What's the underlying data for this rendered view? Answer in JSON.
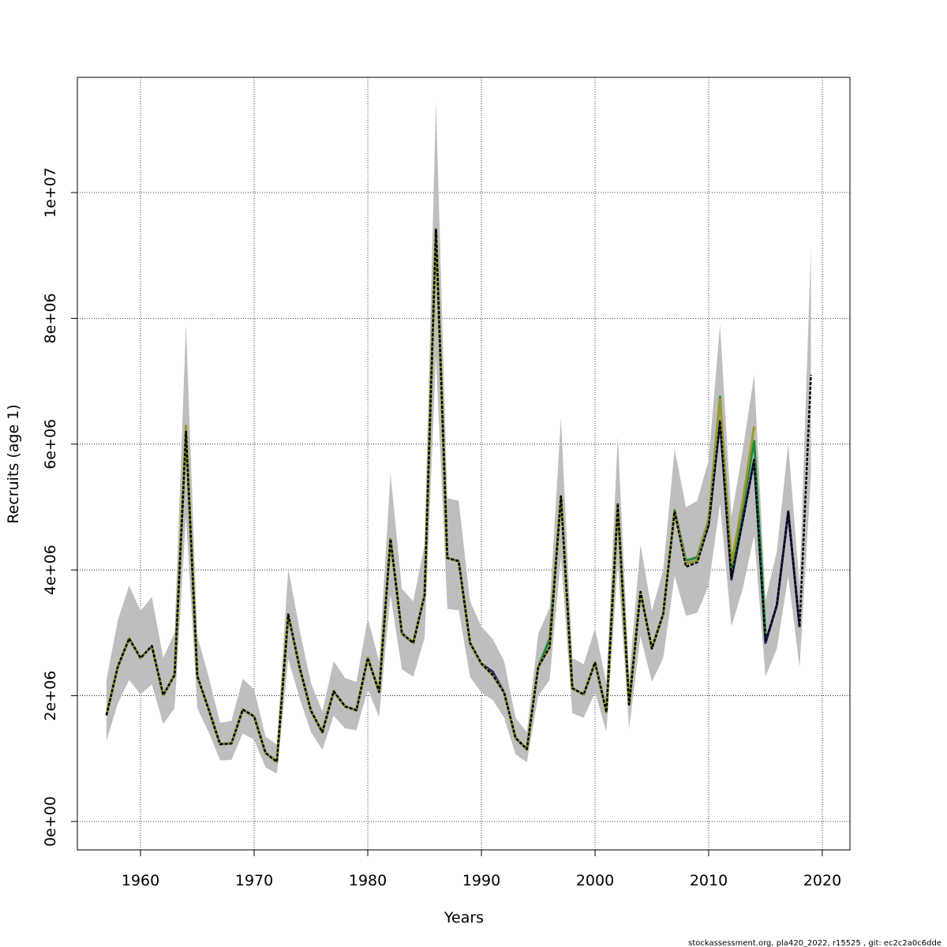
{
  "chart_data": {
    "type": "line",
    "xlabel": "Years",
    "ylabel": "Recruits (age 1)",
    "footer": "stockassessment.org, pla420_2022, r15525 , git: ec2c2a0c6dde",
    "x": [
      1957,
      1958,
      1959,
      1960,
      1961,
      1962,
      1963,
      1964,
      1965,
      1966,
      1967,
      1968,
      1969,
      1970,
      1971,
      1972,
      1973,
      1974,
      1975,
      1976,
      1977,
      1978,
      1979,
      1980,
      1981,
      1982,
      1983,
      1984,
      1985,
      1986,
      1987,
      1988,
      1989,
      1990,
      1991,
      1992,
      1993,
      1994,
      1995,
      1996,
      1997,
      1998,
      1999,
      2000,
      2001,
      2002,
      2003,
      2004,
      2005,
      2006,
      2007,
      2008,
      2009,
      2010,
      2011,
      2012,
      2013,
      2014,
      2015,
      2016,
      2017,
      2018,
      2019
    ],
    "band": {
      "color": "#bebebe",
      "upper": [
        2250000,
        3200000,
        3750000,
        3350000,
        3570000,
        2600000,
        3000000,
        7900000,
        2950000,
        2300000,
        1570000,
        1600000,
        2270000,
        2100000,
        1350000,
        1220000,
        4020000,
        3050000,
        2200000,
        1750000,
        2550000,
        2280000,
        2220000,
        3230000,
        2550000,
        5530000,
        3700000,
        3500000,
        4400000,
        11450000,
        5140000,
        5100000,
        3500000,
        3100000,
        2900000,
        2550000,
        1650000,
        1420000,
        2980000,
        3400000,
        6420000,
        2600000,
        2500000,
        3070000,
        2200000,
        6120000,
        2300000,
        4400000,
        3350000,
        4000000,
        5920000,
        5000000,
        5100000,
        5750000,
        7900000,
        4850000,
        5900000,
        7100000,
        3520000,
        4300000,
        6000000,
        3750000,
        9130000
      ],
      "lower": [
        1280000,
        1880000,
        2250000,
        2020000,
        2180000,
        1550000,
        1800000,
        4850000,
        1800000,
        1420000,
        970000,
        980000,
        1400000,
        1300000,
        860000,
        760000,
        2580000,
        1960000,
        1420000,
        1140000,
        1680000,
        1480000,
        1450000,
        2100000,
        1660000,
        3600000,
        2420000,
        2300000,
        2920000,
        7400000,
        3380000,
        3360000,
        2300000,
        2050000,
        1930000,
        1650000,
        1070000,
        940000,
        2000000,
        2250000,
        4200000,
        1720000,
        1650000,
        2050000,
        1420000,
        4100000,
        1480000,
        2950000,
        2220000,
        2600000,
        3900000,
        3270000,
        3320000,
        3750000,
        5050000,
        3100000,
        3700000,
        4550000,
        2300000,
        2750000,
        3900000,
        2450000,
        5500000
      ]
    },
    "series": [
      {
        "color": "#000000",
        "dashed": true,
        "values": [
          1690000,
          2460000,
          2910000,
          2600000,
          2790000,
          2010000,
          2330000,
          6200000,
          2310000,
          1780000,
          1230000,
          1240000,
          1780000,
          1670000,
          1090000,
          950000,
          3290000,
          2450000,
          1760000,
          1420000,
          2070000,
          1830000,
          1770000,
          2600000,
          2060000,
          4490000,
          2990000,
          2840000,
          3600000,
          9420000,
          4190000,
          4140000,
          2840000,
          2510000,
          2330000,
          2050000,
          1330000,
          1150000,
          2460000,
          2770000,
          5170000,
          2120000,
          2020000,
          2530000,
          1740000,
          5020000,
          1860000,
          3650000,
          2750000,
          3300000,
          4930000,
          4050000,
          4120000,
          4720000,
          6370000,
          3880000,
          4780000,
          5750000,
          2860000,
          3440000,
          4910000,
          3090000,
          7100000
        ]
      },
      {
        "color": "#24246e",
        "values": [
          1690000,
          2460000,
          2910000,
          2600000,
          2790000,
          2010000,
          2330000,
          6200000,
          2310000,
          1780000,
          1230000,
          1240000,
          1780000,
          1670000,
          1090000,
          950000,
          3290000,
          2450000,
          1760000,
          1420000,
          2070000,
          1830000,
          1770000,
          2600000,
          2060000,
          4490000,
          2990000,
          2840000,
          3600000,
          9420000,
          4190000,
          4140000,
          2840000,
          2510000,
          2380000,
          2050000,
          1330000,
          1150000,
          2460000,
          2770000,
          5170000,
          2120000,
          2020000,
          2530000,
          1740000,
          5040000,
          1860000,
          3650000,
          2750000,
          3300000,
          4930000,
          4100000,
          4150000,
          4720000,
          6370000,
          3850000,
          4800000,
          5750000,
          2840000,
          3440000,
          4930000,
          3090000,
          null
        ]
      },
      {
        "color": "#1a8a3a",
        "values": [
          1690000,
          2460000,
          2910000,
          2600000,
          2790000,
          2010000,
          2330000,
          6200000,
          2310000,
          1780000,
          1230000,
          1240000,
          1780000,
          1670000,
          1090000,
          950000,
          3290000,
          2450000,
          1760000,
          1420000,
          2070000,
          1830000,
          1770000,
          2600000,
          2060000,
          4490000,
          2990000,
          2840000,
          3600000,
          9420000,
          4190000,
          4140000,
          2840000,
          2510000,
          2330000,
          2050000,
          1330000,
          1150000,
          2460000,
          2900000,
          5170000,
          2120000,
          2020000,
          2530000,
          1740000,
          5020000,
          1860000,
          3650000,
          2750000,
          3300000,
          4950000,
          4150000,
          4200000,
          4800000,
          6750000,
          4000000,
          5000000,
          6050000,
          2980000,
          null,
          null,
          null,
          null
        ]
      },
      {
        "color": "#9a9a2a",
        "values": [
          1690000,
          2460000,
          2910000,
          2600000,
          2790000,
          2010000,
          2330000,
          6290000,
          2310000,
          1780000,
          1230000,
          1240000,
          1780000,
          1670000,
          1090000,
          950000,
          3290000,
          2450000,
          1760000,
          1420000,
          2070000,
          1830000,
          1770000,
          2600000,
          2060000,
          4490000,
          2990000,
          2840000,
          3600000,
          9420000,
          4190000,
          4140000,
          2840000,
          2510000,
          2330000,
          2050000,
          1330000,
          1150000,
          2460000,
          2770000,
          5170000,
          2120000,
          2020000,
          2530000,
          1740000,
          5020000,
          1860000,
          3650000,
          2750000,
          3300000,
          4930000,
          4100000,
          4150000,
          4800000,
          6720000,
          4100000,
          5100000,
          6280000,
          null,
          null,
          null,
          null,
          null
        ]
      }
    ],
    "xlim": [
      1954.44,
      2022.43
    ],
    "ylim": [
      -452000,
      11832000
    ],
    "xticks": [
      1960,
      1970,
      1980,
      1990,
      2000,
      2010,
      2020
    ],
    "yticks": [
      {
        "value": 0,
        "label": "0e+00"
      },
      {
        "value": 2000000,
        "label": "2e+06"
      },
      {
        "value": 4000000,
        "label": "4e+06"
      },
      {
        "value": 6000000,
        "label": "6e+06"
      },
      {
        "value": 8000000,
        "label": "8e+06"
      },
      {
        "value": 10000000,
        "label": "1e+07"
      }
    ],
    "grid": true
  }
}
